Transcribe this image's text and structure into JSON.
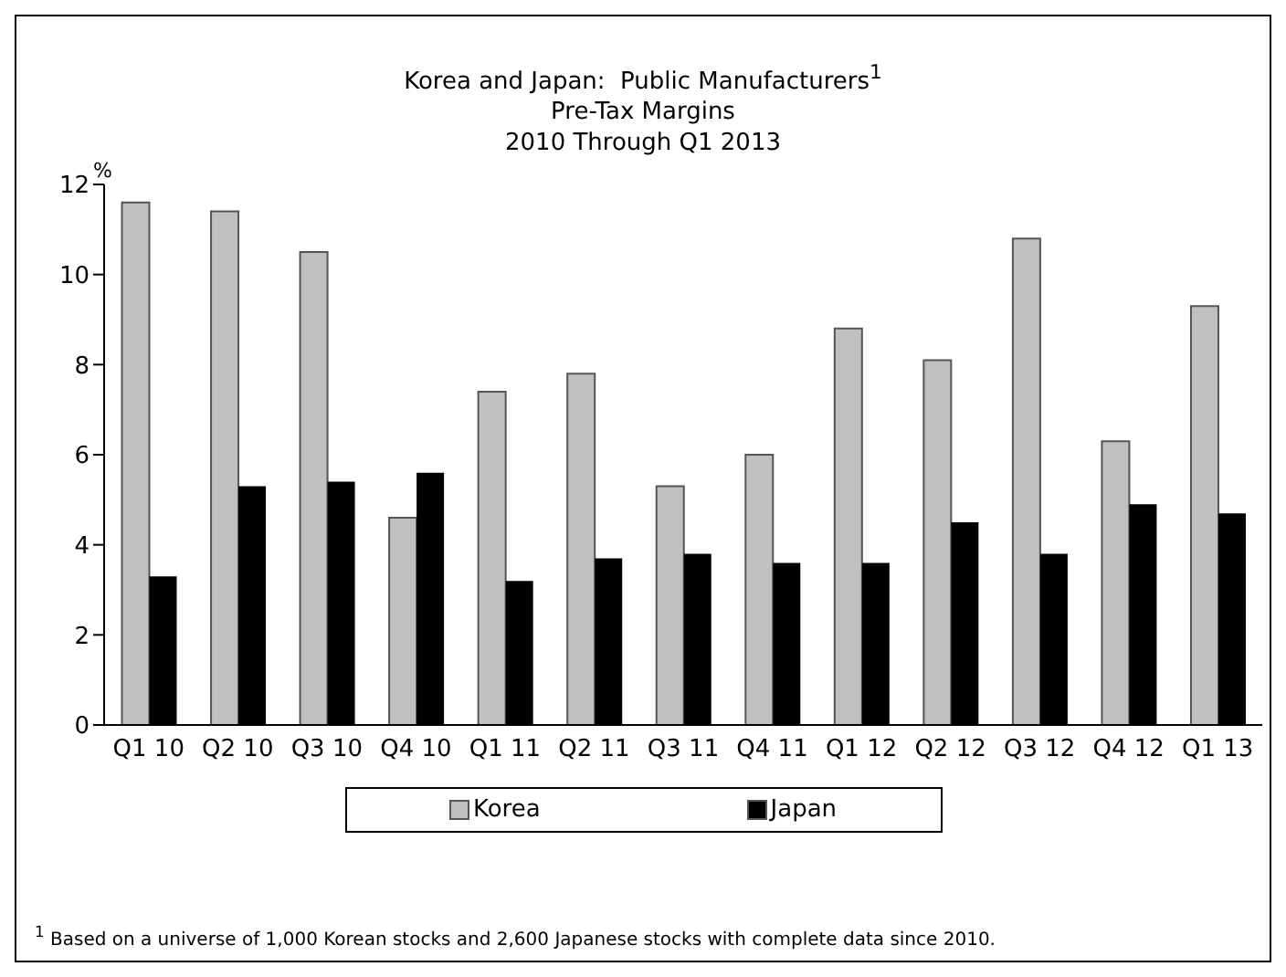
{
  "chart_data": {
    "type": "bar",
    "title": "Korea and Japan:  Public Manufacturers$^{1}$",
    "subtitle": "Pre-Tax Margins\n2010 Through Q1 2013",
    "ylabel": "%",
    "categories": [
      "Q1 10",
      "Q2 10",
      "Q3 10",
      "Q4 10",
      "Q1 11",
      "Q2 11",
      "Q3 11",
      "Q4 11",
      "Q1 12",
      "Q2 12",
      "Q3 12",
      "Q4 12",
      "Q1 13"
    ],
    "series": [
      {
        "name": "Korea",
        "color": "#c0c0c0",
        "values": [
          11.6,
          11.4,
          10.5,
          4.6,
          7.4,
          7.8,
          5.3,
          6.0,
          8.8,
          8.1,
          10.8,
          6.3,
          9.3
        ]
      },
      {
        "name": "Japan",
        "color": "#000000",
        "values": [
          3.3,
          5.3,
          5.4,
          5.6,
          3.2,
          3.7,
          3.8,
          3.6,
          3.6,
          4.5,
          3.8,
          4.9,
          4.7
        ]
      }
    ],
    "ylim": [
      0,
      12
    ],
    "yticks": [
      0,
      2,
      4,
      6,
      8,
      10,
      12
    ],
    "legend": "bottom",
    "annotations": [
      "$^{1}$ Based on a universe of 1,000 Korean stocks and 2,600 Japanese stocks with complete data since 2010."
    ]
  }
}
